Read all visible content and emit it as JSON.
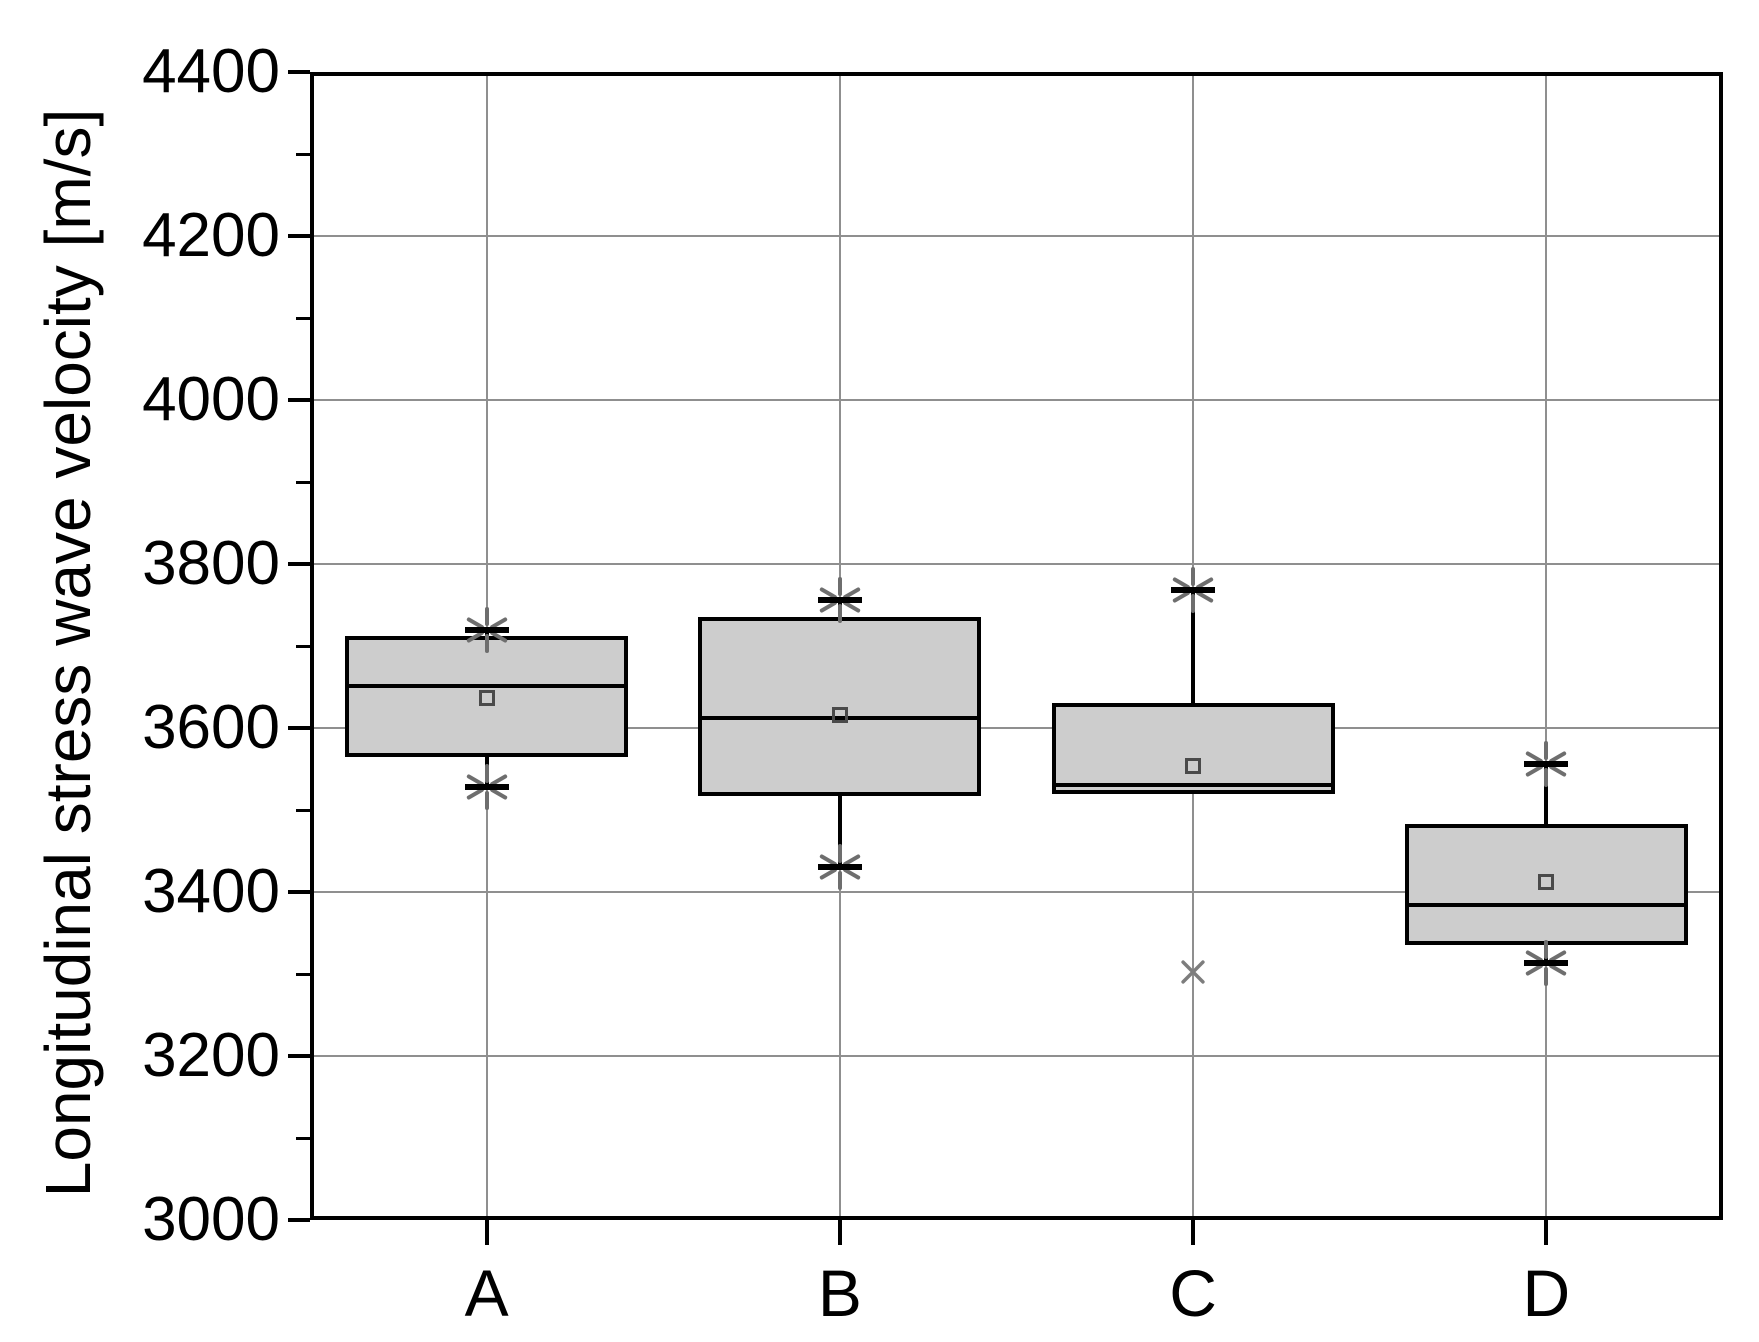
{
  "figure": {
    "background": "#ffffff"
  },
  "chart_data": {
    "type": "boxplot",
    "title": "",
    "xlabel": "",
    "ylabel": "Longitudinal stress wave velocity [m/s]",
    "ylim": [
      3000,
      4400
    ],
    "ytick_major_step": 200,
    "ytick_minor_step": 100,
    "ytick_labels": [
      "3000",
      "3200",
      "3400",
      "3600",
      "3800",
      "4000",
      "4200",
      "4400"
    ],
    "categories": [
      "A",
      "B",
      "C",
      "D"
    ],
    "grid": {
      "horizontal_major": true,
      "vertical_category": true,
      "legend": "none"
    },
    "series": [
      {
        "category": "A",
        "whisker_high": 3720,
        "q3": 3712,
        "median": 3651,
        "mean": 3636,
        "q1": 3565,
        "whisker_low": 3528,
        "end_markers": [
          3720,
          3528
        ],
        "outliers": []
      },
      {
        "category": "B",
        "whisker_high": 3756,
        "q3": 3735,
        "median": 3612,
        "mean": 3616,
        "q1": 3517,
        "whisker_low": 3430,
        "end_markers": [
          3756,
          3430
        ],
        "outliers": []
      },
      {
        "category": "C",
        "whisker_high": 3768,
        "q3": 3630,
        "median": 3530,
        "mean": 3554,
        "q1": 3519,
        "whisker_low": null,
        "end_markers": [
          3768
        ],
        "outliers": [
          3302
        ]
      },
      {
        "category": "D",
        "whisker_high": 3556,
        "q3": 3483,
        "median": 3384,
        "mean": 3412,
        "q1": 3335,
        "whisker_low": 3313,
        "end_markers": [
          3556,
          3313
        ],
        "outliers": []
      }
    ],
    "colors": {
      "box_fill": "#cdcdcd",
      "box_border": "#000000",
      "median": "#000000",
      "whisker": "#000000",
      "gridline": "#8f8f8f",
      "mean_marker_border": "#4a4a4a",
      "end_marker_star": "#6e6e6e",
      "outlier_marker": "#7d7d7d",
      "axis": "#000000",
      "text": "#000000"
    }
  }
}
